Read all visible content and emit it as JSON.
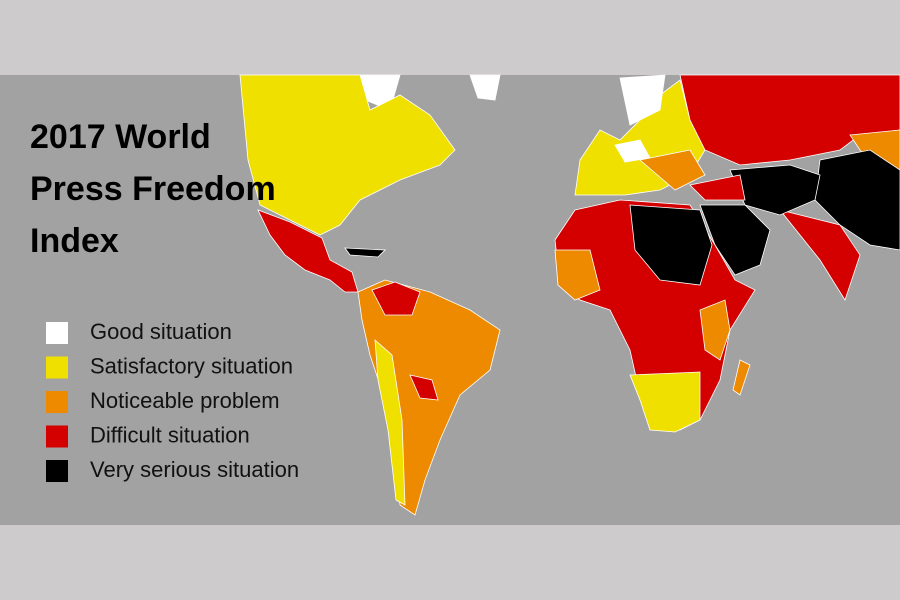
{
  "map": {
    "title_lines": [
      "2017 World",
      "Press Freedom",
      "Index"
    ],
    "legend": [
      {
        "name": "Good situation",
        "color": "#ffffff"
      },
      {
        "name": "Satisfactory situation",
        "color": "#f0e000"
      },
      {
        "name": "Noticeable problem",
        "color": "#ee8a00"
      },
      {
        "name": "Difficult situation",
        "color": "#d40000"
      },
      {
        "name": "Very serious situation",
        "color": "#000000"
      }
    ]
  }
}
